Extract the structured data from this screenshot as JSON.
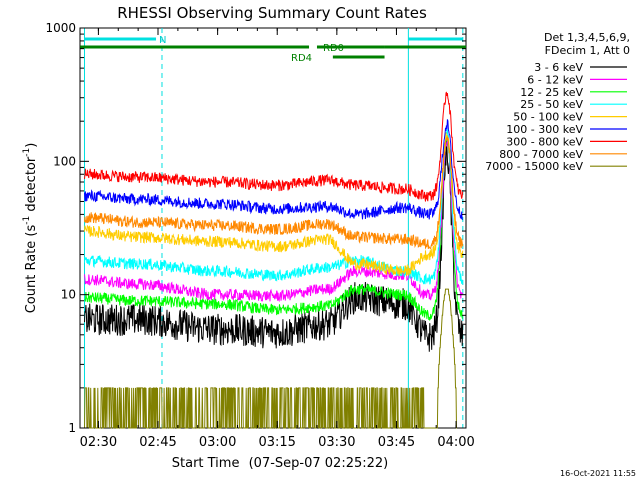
{
  "chart_data": {
    "type": "line",
    "title": "RHESSI Observing Summary Count Rates",
    "xlabel_prefix": "Start Time",
    "xlabel_date": "(07-Sep-07 02:25:22)",
    "ylabel_main": "Count Rate (s",
    "ylabel_sup1": "-1",
    "ylabel_mid": " detector",
    "ylabel_sup2": "-1",
    "ylabel_end": ")",
    "x_ticks": [
      "02:30",
      "02:45",
      "03:00",
      "03:15",
      "03:30",
      "03:45",
      "04:00"
    ],
    "x_tick_minutes": [
      150,
      165,
      180,
      195,
      210,
      225,
      240
    ],
    "xlim_minutes": [
      145.37,
      242.5
    ],
    "ylim": [
      1,
      1000
    ],
    "y_scale": "log",
    "y_ticks": [
      "1",
      "10",
      "100",
      "1000"
    ],
    "y_tick_values": [
      1,
      10,
      100,
      1000
    ],
    "legend_header": [
      "Det 1,3,4,5,6,9,",
      "FDecim 1, Att 0"
    ],
    "series": [
      {
        "name": "3 - 6 keV",
        "color": "#000000",
        "base": [
          6.5,
          6.5,
          5.5,
          5.2,
          6.0,
          9.5,
          8.5,
          4.8
        ],
        "peak": 115
      },
      {
        "name": "6 - 12 keV",
        "color": "#ff00ff",
        "base": [
          13,
          12,
          10,
          9.8,
          11,
          15,
          14,
          9.8
        ],
        "peak": 140
      },
      {
        "name": "12 - 25 keV",
        "color": "#00ff00",
        "base": [
          9.5,
          9,
          8.5,
          7.7,
          8.2,
          11,
          10,
          7.0
        ],
        "peak": 150
      },
      {
        "name": "25 - 50 keV",
        "color": "#00ffff",
        "base": [
          18,
          17,
          15,
          14,
          16,
          18,
          15,
          13
        ],
        "peak": 160
      },
      {
        "name": "50 - 100 keV",
        "color": "#ffcc00",
        "base": [
          30,
          27,
          25,
          23,
          26,
          17,
          15,
          20
        ],
        "peak": 165
      },
      {
        "name": "100 - 300 keV",
        "color": "#0000ff",
        "base": [
          55,
          52,
          48,
          44,
          46,
          40,
          45,
          40
        ],
        "peak": 190
      },
      {
        "name": "300 - 800 keV",
        "color": "#ff0000",
        "base": [
          80,
          76,
          70,
          66,
          72,
          66,
          62,
          55
        ],
        "peak": 330
      },
      {
        "name": "800 - 7000 keV",
        "color": "#ff8800",
        "base": [
          38,
          35,
          33,
          31,
          34,
          27,
          26,
          24
        ],
        "peak": 150
      },
      {
        "name": "7000 - 15000 keV",
        "color": "#808000",
        "base": [
          1.5,
          1.5,
          1.5,
          1.5,
          1.5,
          1.5,
          1.5,
          1.5
        ],
        "peak": 11
      }
    ],
    "flags": {
      "N_label": "N",
      "RD0_label": "RD0",
      "RD4_label": "RD4"
    },
    "footer_timestamp": "16-Oct-2021 11:55"
  }
}
